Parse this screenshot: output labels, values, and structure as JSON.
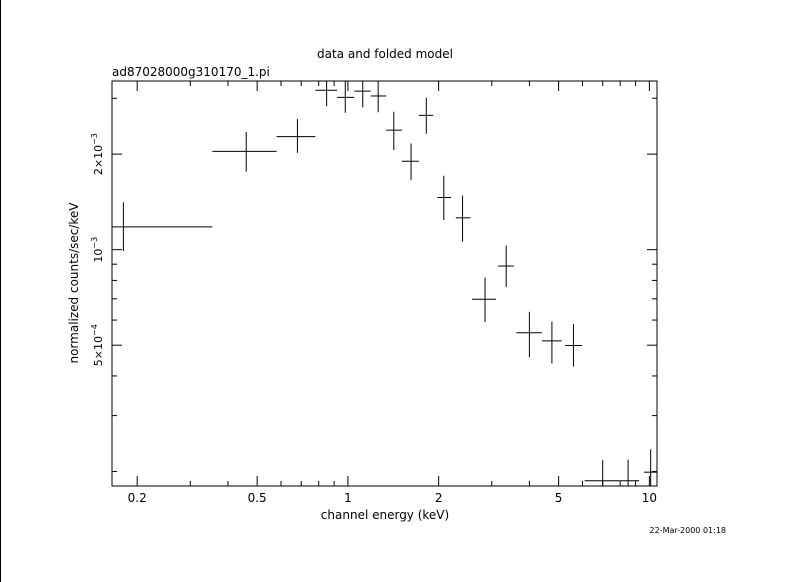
{
  "chart_data": {
    "type": "scatter",
    "title": "data and folded model",
    "subtitle": "ad87028000g310170_1.pi",
    "xlabel": "channel energy (keV)",
    "ylabel": "normalized counts/sec/keV",
    "x_scale": "log",
    "y_scale": "log",
    "xlim": [
      0.165,
      10.6
    ],
    "ylim": [
      0.00018,
      0.0034
    ],
    "grid": false,
    "x_ticks": [
      {
        "value": 0.2,
        "label": "0.2"
      },
      {
        "value": 0.5,
        "label": "0.5"
      },
      {
        "value": 1,
        "label": "1"
      },
      {
        "value": 2,
        "label": "2"
      },
      {
        "value": 5,
        "label": "5"
      },
      {
        "value": 10,
        "label": "10"
      }
    ],
    "x_minor_ticks": [
      0.3,
      0.4,
      0.6,
      0.7,
      0.8,
      0.9,
      3,
      4,
      6,
      7,
      8,
      9
    ],
    "y_ticks": [
      {
        "value": 0.0005,
        "mantissa": "5×10",
        "exponent": "−4"
      },
      {
        "value": 0.001,
        "mantissa": "10",
        "exponent": "−3"
      },
      {
        "value": 0.002,
        "mantissa": "2×10",
        "exponent": "−3"
      }
    ],
    "y_minor_ticks": [
      0.0002,
      0.0003,
      0.0004,
      0.0006,
      0.0007,
      0.0008,
      0.0009,
      0.003
    ],
    "series": [
      {
        "points": [
          {
            "x": 0.18,
            "xlo": 0.165,
            "xhi": 0.355,
            "y": 0.00118,
            "ylo": 0.00099,
            "yhi": 0.00141
          },
          {
            "x": 0.46,
            "xlo": 0.355,
            "xhi": 0.58,
            "y": 0.00204,
            "ylo": 0.00176,
            "yhi": 0.00235
          },
          {
            "x": 0.68,
            "xlo": 0.58,
            "xhi": 0.78,
            "y": 0.00227,
            "ylo": 0.00202,
            "yhi": 0.00258
          },
          {
            "x": 0.85,
            "xlo": 0.78,
            "xhi": 0.92,
            "y": 0.00318,
            "ylo": 0.00283,
            "yhi": 0.0034
          },
          {
            "x": 0.98,
            "xlo": 0.92,
            "xhi": 1.05,
            "y": 0.00302,
            "ylo": 0.0027,
            "yhi": 0.0034
          },
          {
            "x": 1.12,
            "xlo": 1.05,
            "xhi": 1.19,
            "y": 0.00316,
            "ylo": 0.00281,
            "yhi": 0.0034
          },
          {
            "x": 1.26,
            "xlo": 1.19,
            "xhi": 1.34,
            "y": 0.00305,
            "ylo": 0.00271,
            "yhi": 0.0034
          },
          {
            "x": 1.42,
            "xlo": 1.34,
            "xhi": 1.51,
            "y": 0.00238,
            "ylo": 0.00206,
            "yhi": 0.00272
          },
          {
            "x": 1.62,
            "xlo": 1.51,
            "xhi": 1.72,
            "y": 0.0019,
            "ylo": 0.00166,
            "yhi": 0.00216
          },
          {
            "x": 1.82,
            "xlo": 1.72,
            "xhi": 1.92,
            "y": 0.00265,
            "ylo": 0.00232,
            "yhi": 0.00301
          },
          {
            "x": 2.08,
            "xlo": 1.98,
            "xhi": 2.2,
            "y": 0.00146,
            "ylo": 0.00124,
            "yhi": 0.00171
          },
          {
            "x": 2.4,
            "xlo": 2.28,
            "xhi": 2.55,
            "y": 0.00126,
            "ylo": 0.00106,
            "yhi": 0.00148
          },
          {
            "x": 2.85,
            "xlo": 2.58,
            "xhi": 3.1,
            "y": 0.000698,
            "ylo": 0.000591,
            "yhi": 0.000817
          },
          {
            "x": 3.35,
            "xlo": 3.15,
            "xhi": 3.55,
            "y": 0.000888,
            "ylo": 0.000762,
            "yhi": 0.00103
          },
          {
            "x": 4.0,
            "xlo": 3.62,
            "xhi": 4.4,
            "y": 0.000547,
            "ylo": 0.000458,
            "yhi": 0.000637
          },
          {
            "x": 4.75,
            "xlo": 4.4,
            "xhi": 5.12,
            "y": 0.000516,
            "ylo": 0.000438,
            "yhi": 0.000593
          },
          {
            "x": 5.6,
            "xlo": 5.25,
            "xhi": 5.98,
            "y": 0.000499,
            "ylo": 0.000428,
            "yhi": 0.000583
          },
          {
            "x": 7.0,
            "xlo": 6.1,
            "xhi": 7.95,
            "y": 0.000187,
            "ylo": 0.00018,
            "yhi": 0.000217
          },
          {
            "x": 8.5,
            "xlo": 7.95,
            "xhi": 9.25,
            "y": 0.000187,
            "ylo": 0.00018,
            "yhi": 0.000218
          },
          {
            "x": 10.1,
            "xlo": 9.6,
            "xhi": 10.6,
            "y": 0.000199,
            "ylo": 0.00018,
            "yhi": 0.000235
          }
        ]
      }
    ]
  },
  "timestamp": "22-Mar-2000 01:18"
}
